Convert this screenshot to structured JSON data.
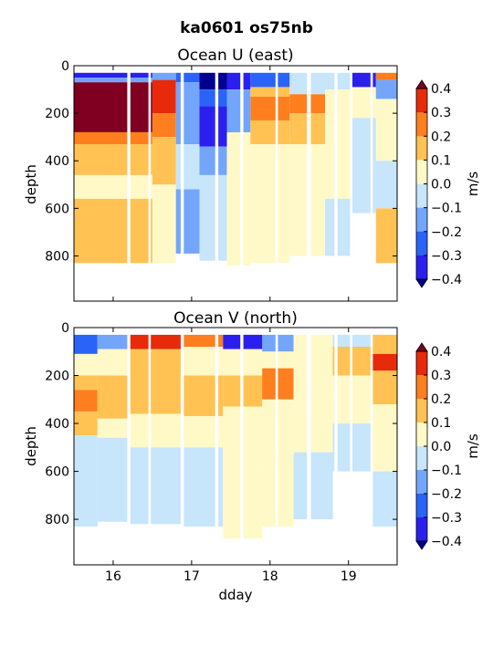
{
  "figure": {
    "title": "ka0601 os75nb"
  },
  "chart_data": [
    {
      "type": "heatmap",
      "title": "Ocean U (east)",
      "xlabel": "",
      "ylabel": "depth",
      "xlim": [
        15.5,
        19.62
      ],
      "ylim": [
        990,
        0
      ],
      "xticks": [
        16,
        17,
        18,
        19
      ],
      "xtick_labels": [
        "",
        "",
        "",
        ""
      ],
      "yticks": [
        0,
        200,
        400,
        600,
        800
      ],
      "ytick_labels": [
        "0",
        "200",
        "400",
        "600",
        "800"
      ],
      "grid": false,
      "colorbar": {
        "label": "m/s",
        "levels": [
          -0.4,
          -0.3,
          -0.2,
          -0.1,
          0.0,
          0.1,
          0.2,
          0.3,
          0.4
        ],
        "tick_labels": [
          "−0.4",
          "−0.3",
          "−0.2",
          "−0.1",
          "0.0",
          "0.1",
          "0.2",
          "0.3",
          "0.4"
        ],
        "colors": [
          "#00008f",
          "#2b1ff0",
          "#2a63f7",
          "#73a6fb",
          "#c7e5fb",
          "#fff9c8",
          "#ffc253",
          "#ff7e1d",
          "#e62a0a",
          "#7f0020"
        ],
        "extend": "both"
      },
      "columns": [
        {
          "x0": 15.5,
          "x1": 16.5,
          "bottom": 830,
          "bands": [
            [
              30,
              50,
              -0.35
            ],
            [
              50,
              70,
              -0.15
            ],
            [
              70,
              280,
              0.45
            ],
            [
              280,
              330,
              0.25
            ],
            [
              330,
              460,
              0.15
            ],
            [
              460,
              560,
              0.05
            ],
            [
              560,
              830,
              0.15
            ]
          ]
        },
        {
          "x0": 16.5,
          "x1": 16.8,
          "bottom": 830,
          "bands": [
            [
              30,
              60,
              -0.15
            ],
            [
              60,
              200,
              0.35
            ],
            [
              200,
              300,
              0.25
            ],
            [
              300,
              500,
              0.15
            ],
            [
              500,
              830,
              0.05
            ]
          ]
        },
        {
          "x0": 16.8,
          "x1": 17.1,
          "bottom": 790,
          "bands": [
            [
              30,
              70,
              -0.25
            ],
            [
              70,
              330,
              -0.15
            ],
            [
              330,
              520,
              -0.05
            ],
            [
              520,
              790,
              -0.15
            ]
          ]
        },
        {
          "x0": 17.1,
          "x1": 17.45,
          "bottom": 820,
          "bands": [
            [
              30,
              100,
              -0.45
            ],
            [
              100,
              170,
              -0.25
            ],
            [
              170,
              340,
              -0.35
            ],
            [
              340,
              460,
              -0.15
            ],
            [
              460,
              820,
              -0.05
            ]
          ]
        },
        {
          "x0": 17.45,
          "x1": 17.75,
          "bottom": 840,
          "bands": [
            [
              30,
              100,
              -0.35
            ],
            [
              100,
              280,
              -0.15
            ],
            [
              280,
              460,
              0.05
            ],
            [
              460,
              840,
              0.05
            ]
          ]
        },
        {
          "x0": 17.75,
          "x1": 18.25,
          "bottom": 830,
          "bands": [
            [
              30,
              90,
              -0.25
            ],
            [
              90,
              130,
              0.15
            ],
            [
              130,
              230,
              0.25
            ],
            [
              230,
              330,
              0.15
            ],
            [
              330,
              830,
              0.05
            ]
          ]
        },
        {
          "x0": 18.25,
          "x1": 18.7,
          "bottom": 800,
          "bands": [
            [
              30,
              120,
              -0.05
            ],
            [
              120,
              200,
              0.25
            ],
            [
              200,
              330,
              0.15
            ],
            [
              330,
              800,
              0.05
            ]
          ]
        },
        {
          "x0": 18.7,
          "x1": 19.05,
          "bottom": 800,
          "bands": [
            [
              30,
              100,
              -0.05
            ],
            [
              100,
              300,
              0.05
            ],
            [
              300,
              560,
              0.05
            ],
            [
              560,
              800,
              -0.05
            ]
          ]
        },
        {
          "x0": 19.05,
          "x1": 19.35,
          "bottom": 620,
          "bands": [
            [
              30,
              90,
              -0.35
            ],
            [
              90,
              220,
              0.05
            ],
            [
              220,
              620,
              -0.05
            ]
          ]
        },
        {
          "x0": 19.35,
          "x1": 19.62,
          "bottom": 830,
          "bands": [
            [
              30,
              60,
              0.25
            ],
            [
              60,
              140,
              -0.15
            ],
            [
              140,
              400,
              0.05
            ],
            [
              400,
              600,
              -0.05
            ],
            [
              600,
              830,
              0.15
            ]
          ]
        }
      ],
      "gaps": [
        [
          16.18,
          16.22
        ],
        [
          16.45,
          16.48
        ],
        [
          16.86,
          16.9
        ],
        [
          17.3,
          17.34
        ],
        [
          17.62,
          17.66
        ],
        [
          18.07,
          18.1
        ],
        [
          18.47,
          18.52
        ],
        [
          18.82,
          18.86
        ],
        [
          19.02,
          19.05
        ],
        [
          19.28,
          19.31
        ]
      ]
    },
    {
      "type": "heatmap",
      "title": "Ocean V (north)",
      "xlabel": "dday",
      "ylabel": "depth",
      "xlim": [
        15.5,
        19.62
      ],
      "ylim": [
        990,
        0
      ],
      "xticks": [
        16,
        17,
        18,
        19
      ],
      "xtick_labels": [
        "16",
        "17",
        "18",
        "19"
      ],
      "yticks": [
        0,
        200,
        400,
        600,
        800
      ],
      "ytick_labels": [
        "0",
        "200",
        "400",
        "600",
        "800"
      ],
      "grid": false,
      "colorbar": {
        "label": "m/s",
        "levels": [
          -0.4,
          -0.3,
          -0.2,
          -0.1,
          0.0,
          0.1,
          0.2,
          0.3,
          0.4
        ],
        "tick_labels": [
          "−0.4",
          "−0.3",
          "−0.2",
          "−0.1",
          "0.0",
          "0.1",
          "0.2",
          "0.3",
          "0.4"
        ],
        "colors": [
          "#00008f",
          "#2b1ff0",
          "#2a63f7",
          "#73a6fb",
          "#c7e5fb",
          "#fff9c8",
          "#ffc253",
          "#ff7e1d",
          "#e62a0a",
          "#7f0020"
        ],
        "extend": "both"
      },
      "columns": [
        {
          "x0": 15.5,
          "x1": 15.8,
          "bottom": 830,
          "bands": [
            [
              30,
              110,
              -0.25
            ],
            [
              110,
              200,
              0.05
            ],
            [
              200,
              260,
              0.15
            ],
            [
              260,
              350,
              0.25
            ],
            [
              350,
              450,
              0.15
            ],
            [
              450,
              830,
              -0.05
            ]
          ]
        },
        {
          "x0": 15.8,
          "x1": 16.2,
          "bottom": 810,
          "bands": [
            [
              30,
              90,
              -0.15
            ],
            [
              90,
              200,
              0.05
            ],
            [
              200,
              380,
              0.15
            ],
            [
              380,
              460,
              0.05
            ],
            [
              460,
              810,
              -0.05
            ]
          ]
        },
        {
          "x0": 16.2,
          "x1": 16.9,
          "bottom": 820,
          "bands": [
            [
              30,
              90,
              0.35
            ],
            [
              90,
              200,
              0.15
            ],
            [
              200,
              360,
              0.15
            ],
            [
              360,
              500,
              0.05
            ],
            [
              500,
              820,
              -0.05
            ]
          ]
        },
        {
          "x0": 16.9,
          "x1": 17.4,
          "bottom": 830,
          "bands": [
            [
              30,
              80,
              0.25
            ],
            [
              80,
              200,
              0.05
            ],
            [
              200,
              370,
              0.15
            ],
            [
              370,
              500,
              0.05
            ],
            [
              500,
              830,
              -0.05
            ]
          ]
        },
        {
          "x0": 17.4,
          "x1": 17.9,
          "bottom": 880,
          "bands": [
            [
              30,
              90,
              -0.35
            ],
            [
              90,
              200,
              0.05
            ],
            [
              200,
              330,
              0.15
            ],
            [
              330,
              600,
              0.05
            ],
            [
              600,
              880,
              0.05
            ]
          ]
        },
        {
          "x0": 17.9,
          "x1": 18.3,
          "bottom": 830,
          "bands": [
            [
              30,
              100,
              -0.15
            ],
            [
              100,
              170,
              0.05
            ],
            [
              170,
              300,
              0.25
            ],
            [
              300,
              520,
              0.05
            ],
            [
              520,
              830,
              0.05
            ]
          ]
        },
        {
          "x0": 18.3,
          "x1": 18.8,
          "bottom": 800,
          "bands": [
            [
              30,
              100,
              0.05
            ],
            [
              100,
              300,
              0.05
            ],
            [
              300,
              520,
              0.05
            ],
            [
              520,
              800,
              -0.05
            ]
          ]
        },
        {
          "x0": 18.8,
          "x1": 19.3,
          "bottom": 600,
          "bands": [
            [
              30,
              80,
              -0.05
            ],
            [
              80,
              200,
              0.15
            ],
            [
              200,
              400,
              0.05
            ],
            [
              400,
              600,
              -0.05
            ]
          ]
        },
        {
          "x0": 19.3,
          "x1": 19.62,
          "bottom": 830,
          "bands": [
            [
              30,
              110,
              0.15
            ],
            [
              110,
              180,
              0.35
            ],
            [
              180,
              320,
              0.15
            ],
            [
              320,
              600,
              0.05
            ],
            [
              600,
              830,
              -0.05
            ]
          ]
        }
      ],
      "gaps": [
        [
          16.18,
          16.22
        ],
        [
          16.45,
          16.48
        ],
        [
          16.86,
          16.9
        ],
        [
          17.3,
          17.34
        ],
        [
          17.62,
          17.66
        ],
        [
          18.07,
          18.1
        ],
        [
          18.47,
          18.52
        ],
        [
          18.82,
          18.86
        ],
        [
          19.02,
          19.05
        ],
        [
          19.28,
          19.31
        ]
      ]
    }
  ]
}
